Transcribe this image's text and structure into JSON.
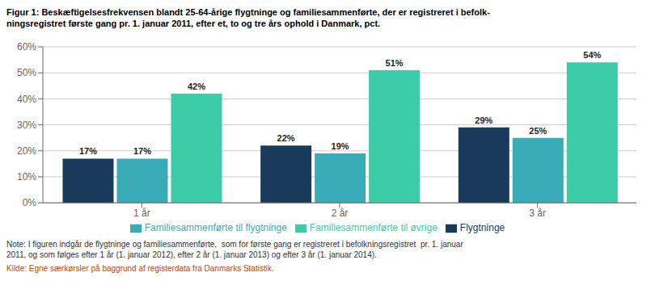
{
  "chart_data": {
    "type": "bar",
    "title": "Figur 1: Beskæftigelsesfrekvensen blandt 25-64-årige flygtninge og familiesammenførte, der er registreret i befolk-\nningsregistret første gang pr. 1. januar 2011, efter et, to og tre års ophold i Danmark, pct.",
    "categories": [
      "1 år",
      "2 år",
      "3 år"
    ],
    "series": [
      {
        "name": "Flygtninge",
        "values": [
          17,
          22,
          29
        ],
        "value_labels": [
          "17%",
          "22%",
          "29%"
        ],
        "color": "#1a3a5c"
      },
      {
        "name": "Familiesammenførte til flygtninge",
        "values": [
          17,
          19,
          25
        ],
        "value_labels": [
          "17%",
          "19%",
          "25%"
        ],
        "color": "#3aacb8"
      },
      {
        "name": "Familiesammenførte til øvrige",
        "values": [
          42,
          51,
          54
        ],
        "value_labels": [
          "42%",
          "51%",
          "54%"
        ],
        "color": "#3dcca8"
      }
    ],
    "ylim": [
      0,
      60
    ],
    "yticks": [
      {
        "value": 0,
        "label": "0%"
      },
      {
        "value": 10,
        "label": "10%"
      },
      {
        "value": 20,
        "label": "20%"
      },
      {
        "value": 30,
        "label": "30%"
      },
      {
        "value": 40,
        "label": "40%"
      },
      {
        "value": 50,
        "label": "50%"
      },
      {
        "value": 60,
        "label": "60%"
      }
    ],
    "grid": true,
    "legend": "bottom",
    "data_labels": true,
    "annotations": [
      {
        "text": "Note: I figuren indgår de flygtninge og familiesammenførte,  som for første gang er registreret i befolkningsregistret  pr. 1. januar\n2011, og som følges efter 1 år (1. januar 2012), efter 2 år (1. januar 2013) og efter 3 år (1. januar 2014).",
        "color": "#333333"
      },
      {
        "text": "Kilde: Egne særkørsler på baggrund af registerdata fra Danmarks Statistik.",
        "color": "#cc4400"
      }
    ]
  }
}
